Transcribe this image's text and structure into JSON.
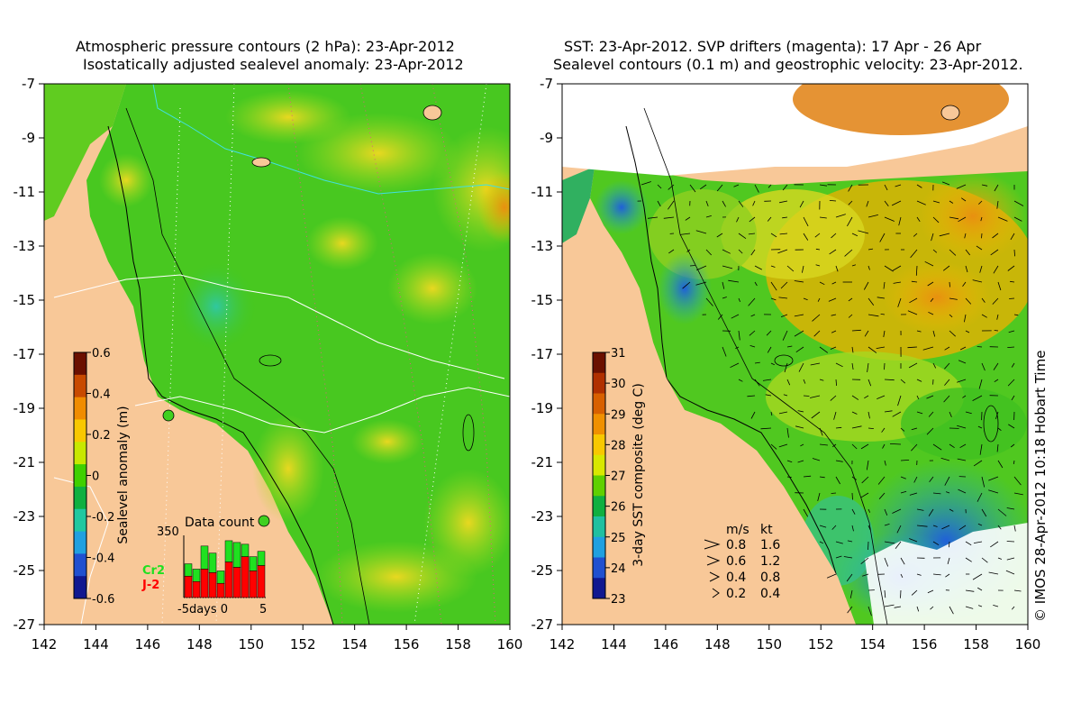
{
  "left_panel": {
    "title_line1": "Atmospheric pressure contours (2 hPa): 23-Apr-2012",
    "title_line2": "Isostatically adjusted sealevel anomaly: 23-Apr-2012",
    "colorbar": {
      "label": "Sealevel anomaly (m)",
      "ticks": [
        "0.6",
        "0.4",
        "0.2",
        "0",
        "-0.2",
        "-0.4",
        "-0.6"
      ],
      "colors": [
        "#6b1000",
        "#c84a00",
        "#f08c00",
        "#f8c800",
        "#c8e800",
        "#40d000",
        "#10b040",
        "#20c8a0",
        "#20a0e0",
        "#2050d0",
        "#101890"
      ]
    },
    "data_count": {
      "title": "Data count",
      "max_label": "350",
      "xlabel": "-5days 0",
      "xlabel_end": "5",
      "legend_cr2": "Cr2",
      "legend_j2": "J-2",
      "cr2_color": "#20e020",
      "j2_color": "#ff0000",
      "bars": [
        {
          "j2": 120,
          "total": 190
        },
        {
          "j2": 90,
          "total": 160
        },
        {
          "j2": 160,
          "total": 290
        },
        {
          "j2": 140,
          "total": 250
        },
        {
          "j2": 80,
          "total": 150
        },
        {
          "j2": 200,
          "total": 320
        },
        {
          "j2": 170,
          "total": 310
        },
        {
          "j2": 230,
          "total": 300
        },
        {
          "j2": 150,
          "total": 230
        },
        {
          "j2": 180,
          "total": 260
        }
      ],
      "y_max": 350
    }
  },
  "right_panel": {
    "title_line1": "SST: 23-Apr-2012. SVP drifters (magenta): 17 Apr - 26 Apr",
    "title_line2": "Sealevel contours (0.1 m) and geostrophic velocity: 23-Apr-2012.",
    "colorbar": {
      "label": "3-day SST composite (deg C)",
      "ticks": [
        "31",
        "30",
        "29",
        "28",
        "27",
        "26",
        "25",
        "24",
        "23"
      ],
      "colors": [
        "#6b1000",
        "#b03000",
        "#d86000",
        "#f09000",
        "#f8c800",
        "#d8e800",
        "#60d000",
        "#10b040",
        "#20c0a0",
        "#20a0e0",
        "#2050d0",
        "#101890"
      ]
    },
    "velocity_legend": {
      "header_ms": "m/s",
      "header_kt": "kt",
      "rows": [
        {
          "ms": "0.8",
          "kt": "1.6"
        },
        {
          "ms": "0.6",
          "kt": "1.2"
        },
        {
          "ms": "0.4",
          "kt": "0.8"
        },
        {
          "ms": "0.2",
          "kt": "0.4"
        }
      ]
    }
  },
  "axes": {
    "x_ticks": [
      "142",
      "144",
      "146",
      "148",
      "150",
      "152",
      "154",
      "156",
      "158",
      "160"
    ],
    "y_ticks": [
      "-7",
      "-9",
      "-11",
      "-13",
      "-15",
      "-17",
      "-19",
      "-21",
      "-23",
      "-25",
      "-27"
    ]
  },
  "credit": "© IMOS 28-Apr-2012 10:18 Hobart Time",
  "colors": {
    "land": "#f8c898",
    "ocean_green": "#40c820",
    "ocean_yellow_green": "#c0e020",
    "cloud_white": "#ffffff"
  }
}
